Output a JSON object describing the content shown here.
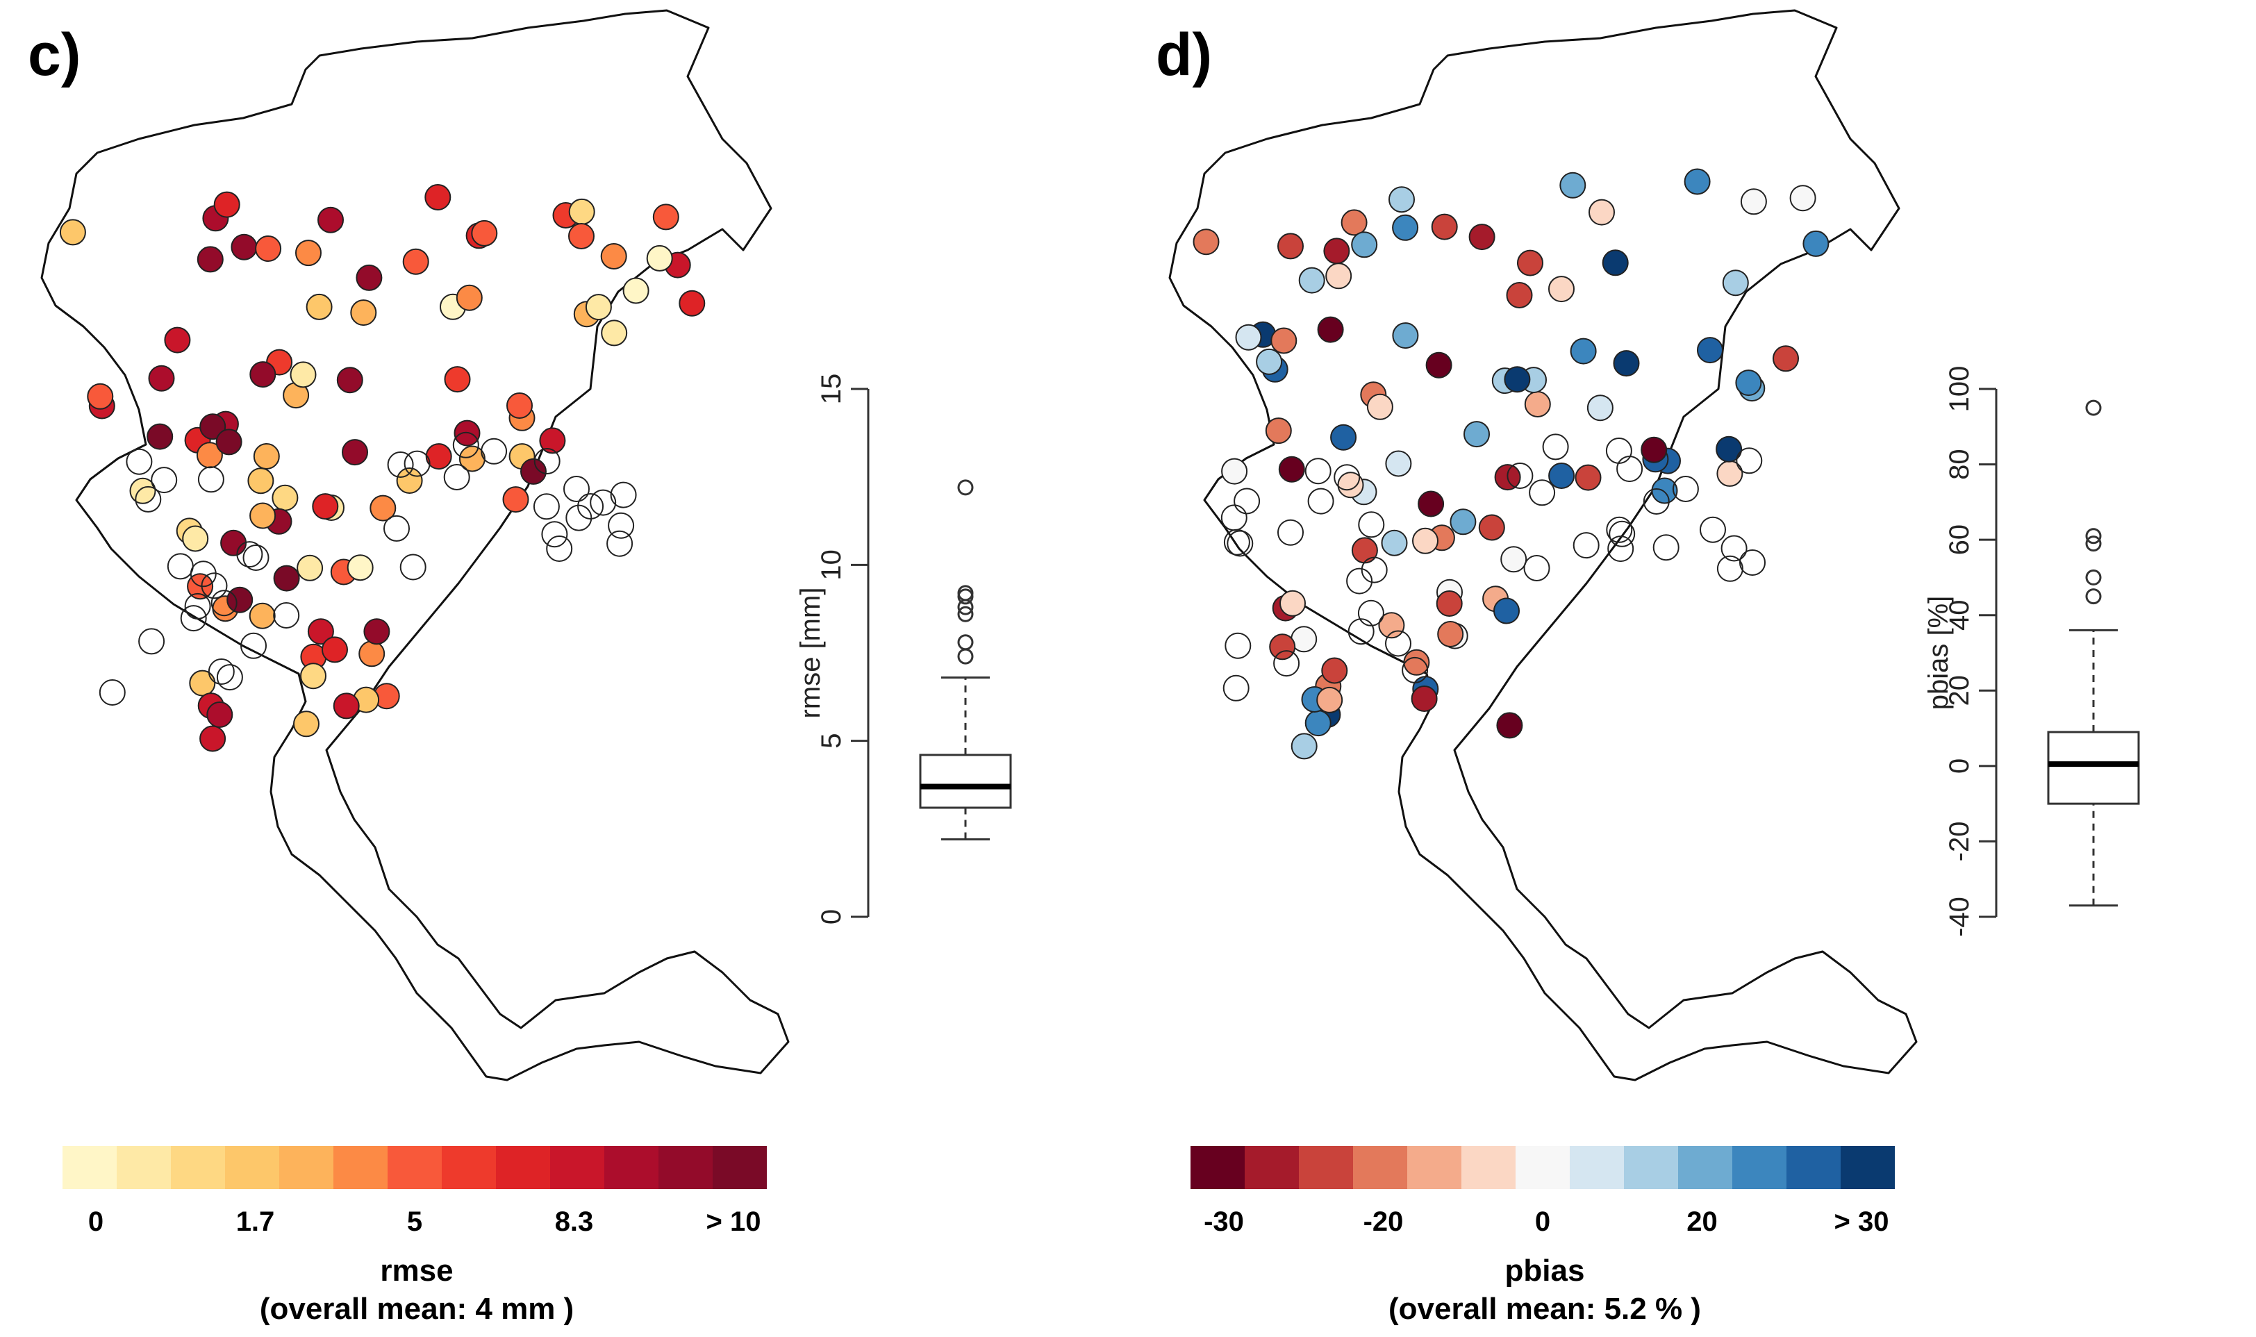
{
  "panels": [
    {
      "label": "c)",
      "metric": "rmse",
      "caption": "(overall mean: 4 mm )",
      "boxplot_ylabel": "rmse [mm]",
      "boxplot_ylim": [
        0,
        15
      ],
      "boxplot_ticks": [
        "0",
        "5",
        "10",
        "15"
      ],
      "boxplot_stats": {
        "min": 2.2,
        "q1": 3.1,
        "median": 3.7,
        "q3": 4.6,
        "whisker_high": 6.8,
        "outliers": [
          7.4,
          7.8,
          8.6,
          8.8,
          9.1,
          9.2,
          12.2
        ]
      },
      "colorbar": {
        "colors": [
          "#fff6c7",
          "#fee9a6",
          "#fed883",
          "#fdc76a",
          "#fdb35b",
          "#fc8a45",
          "#f8593a",
          "#ee3a2c",
          "#de2326",
          "#c9162a",
          "#ac0d2c",
          "#930b2a",
          "#7a0a27"
        ],
        "tick_labels": [
          "0",
          "1.7",
          "5",
          "8.3",
          "> 10"
        ]
      }
    },
    {
      "label": "d)",
      "metric": "pbias",
      "caption": "(overall mean: 5.2 % )",
      "boxplot_ylabel": "pbias [%]",
      "boxplot_ylim": [
        -40,
        100
      ],
      "boxplot_ticks": [
        "-40",
        "-20",
        "0",
        "20",
        "40",
        "60",
        "80",
        "100"
      ],
      "boxplot_stats": {
        "min": -37,
        "q1": -10,
        "median": 0.5,
        "q3": 9,
        "whisker_high": 36,
        "outliers": [
          45,
          50,
          59,
          61,
          95
        ]
      },
      "colorbar": {
        "colors": [
          "#67001f",
          "#a51b2b",
          "#c9433b",
          "#e3795b",
          "#f4ab8b",
          "#fbd7c4",
          "#f7f7f7",
          "#d5e6f1",
          "#a8cee4",
          "#6eabd1",
          "#3c86be",
          "#1f61a2",
          "#0a3a70"
        ],
        "tick_labels": [
          "-30",
          "-20",
          "0",
          "20",
          "> 30"
        ]
      }
    }
  ],
  "chart_data": [
    {
      "type": "scatter",
      "title": "rmse",
      "subtitle": "(overall mean: 4 mm )",
      "ylabel": "rmse [mm]",
      "ylim": [
        0,
        15
      ],
      "colorbar_ticks": [
        "0",
        "1.7",
        "5",
        "8.3",
        "> 10"
      ],
      "overall_mean": 4,
      "boxplot": {
        "whisker_low": 2.2,
        "q1": 3.1,
        "median": 3.7,
        "q3": 4.6,
        "whisker_high": 6.8,
        "outliers": [
          7.4,
          7.8,
          8.6,
          8.8,
          9.1,
          9.2,
          12.2
        ]
      }
    },
    {
      "type": "scatter",
      "title": "pbias",
      "subtitle": "(overall mean: 5.2 % )",
      "ylabel": "pbias [%]",
      "ylim": [
        -40,
        100
      ],
      "colorbar_ticks": [
        "-30",
        "-20",
        "0",
        "20",
        "> 30"
      ],
      "overall_mean": 5.2,
      "boxplot": {
        "whisker_low": -37,
        "q1": -10,
        "median": 0.5,
        "q3": 9,
        "whisker_high": 36,
        "outliers": [
          45,
          50,
          59,
          61,
          95
        ]
      }
    }
  ]
}
